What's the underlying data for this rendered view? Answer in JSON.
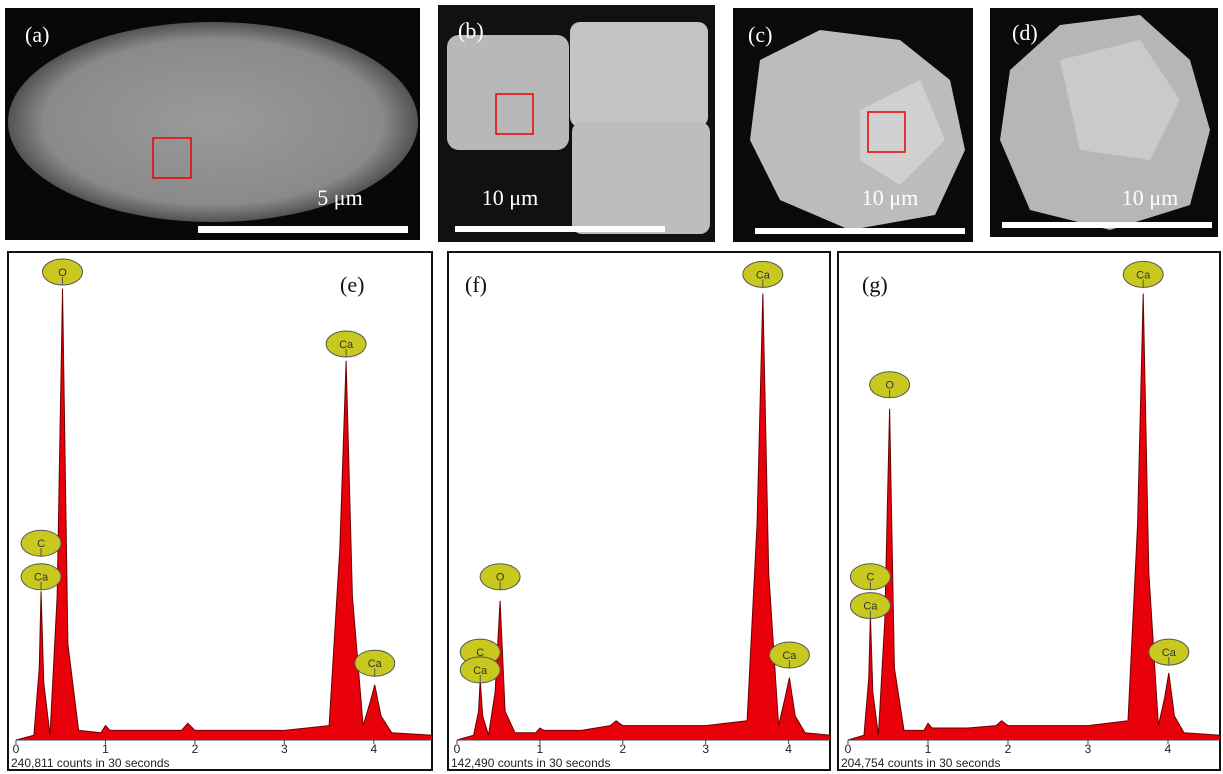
{
  "images": [
    {
      "label": "(a)",
      "scale": "5 μm"
    },
    {
      "label": "(b)",
      "scale": "10 μm"
    },
    {
      "label": "(c)",
      "scale": "10 μm"
    },
    {
      "label": "(d)",
      "scale": "10 μm"
    }
  ],
  "chart_data": [
    {
      "type": "area",
      "title": "(e)",
      "caption": "240,811 counts in 30 seconds",
      "color": "#e8000b",
      "x": [
        0,
        0.2,
        0.26,
        0.28,
        0.31,
        0.38,
        0.46,
        0.52,
        0.58,
        0.7,
        0.95,
        1.0,
        1.05,
        1.5,
        1.85,
        1.92,
        2.0,
        2.5,
        3.0,
        3.5,
        3.62,
        3.69,
        3.76,
        3.88,
        3.96,
        4.01,
        4.08,
        4.2,
        4.65
      ],
      "values": [
        0,
        1,
        15,
        31,
        12,
        1,
        30,
        94,
        20,
        2,
        1.5,
        3,
        2,
        2,
        2,
        3.5,
        2,
        2,
        2,
        3,
        40,
        79,
        30,
        3,
        8,
        11.5,
        5,
        1.5,
        1
      ],
      "xlim": [
        0,
        4.65
      ],
      "ylim": [
        0,
        100
      ],
      "xticks": [
        0,
        1,
        2,
        3,
        4
      ],
      "annotations": [
        {
          "label": "O",
          "x": 0.52,
          "y": 97.5
        },
        {
          "label": "C",
          "x": 0.28,
          "y": 41
        },
        {
          "label": "Ca",
          "x": 0.28,
          "y": 34
        },
        {
          "label": "Ca",
          "x": 3.69,
          "y": 82.5
        },
        {
          "label": "Ca",
          "x": 4.01,
          "y": 16
        }
      ]
    },
    {
      "type": "area",
      "title": "(f)",
      "caption": "142,490 counts in 30 seconds",
      "color": "#e8000b",
      "x": [
        0,
        0.2,
        0.26,
        0.28,
        0.31,
        0.38,
        0.46,
        0.52,
        0.58,
        0.7,
        0.95,
        1.0,
        1.05,
        1.5,
        1.85,
        1.92,
        2.0,
        2.5,
        3.0,
        3.5,
        3.62,
        3.69,
        3.76,
        3.88,
        3.96,
        4.01,
        4.08,
        4.2,
        4.5
      ],
      "values": [
        0,
        1,
        6,
        12.5,
        5,
        1,
        10,
        29,
        6,
        1.5,
        1.5,
        2.5,
        2,
        2,
        3,
        4,
        3,
        3,
        3,
        4,
        45,
        93,
        35,
        3,
        9,
        13,
        5,
        1.5,
        1
      ],
      "xlim": [
        0,
        4.5
      ],
      "ylim": [
        0,
        100
      ],
      "xticks": [
        0,
        1,
        2,
        3,
        4
      ],
      "annotations": [
        {
          "label": "O",
          "x": 0.52,
          "y": 34
        },
        {
          "label": "C",
          "x": 0.28,
          "y": 18.3
        },
        {
          "label": "Ca",
          "x": 0.28,
          "y": 14.6
        },
        {
          "label": "Ca",
          "x": 3.69,
          "y": 97
        },
        {
          "label": "Ca",
          "x": 4.01,
          "y": 17.7
        }
      ]
    },
    {
      "type": "area",
      "title": "(g)",
      "caption": "204,754 counts in 30 seconds",
      "color": "#e8000b",
      "x": [
        0,
        0.2,
        0.26,
        0.28,
        0.31,
        0.38,
        0.46,
        0.52,
        0.58,
        0.7,
        0.95,
        1.0,
        1.05,
        1.5,
        1.85,
        1.92,
        2.0,
        2.5,
        3.0,
        3.5,
        3.62,
        3.69,
        3.76,
        3.88,
        3.96,
        4.01,
        4.08,
        4.2,
        4.65
      ],
      "values": [
        0,
        1,
        13,
        26,
        10,
        1,
        25,
        69,
        15,
        2,
        2,
        3.5,
        2.5,
        2.5,
        3,
        4,
        3,
        3,
        3,
        4,
        45,
        93,
        35,
        3,
        9,
        14,
        5,
        1.5,
        1
      ],
      "xlim": [
        0,
        4.65
      ],
      "ylim": [
        0,
        100
      ],
      "xticks": [
        0,
        1,
        2,
        3,
        4
      ],
      "annotations": [
        {
          "label": "O",
          "x": 0.52,
          "y": 74
        },
        {
          "label": "C",
          "x": 0.28,
          "y": 34
        },
        {
          "label": "Ca",
          "x": 0.28,
          "y": 28
        },
        {
          "label": "Ca",
          "x": 3.69,
          "y": 97
        },
        {
          "label": "Ca",
          "x": 4.01,
          "y": 18.3
        }
      ]
    }
  ]
}
